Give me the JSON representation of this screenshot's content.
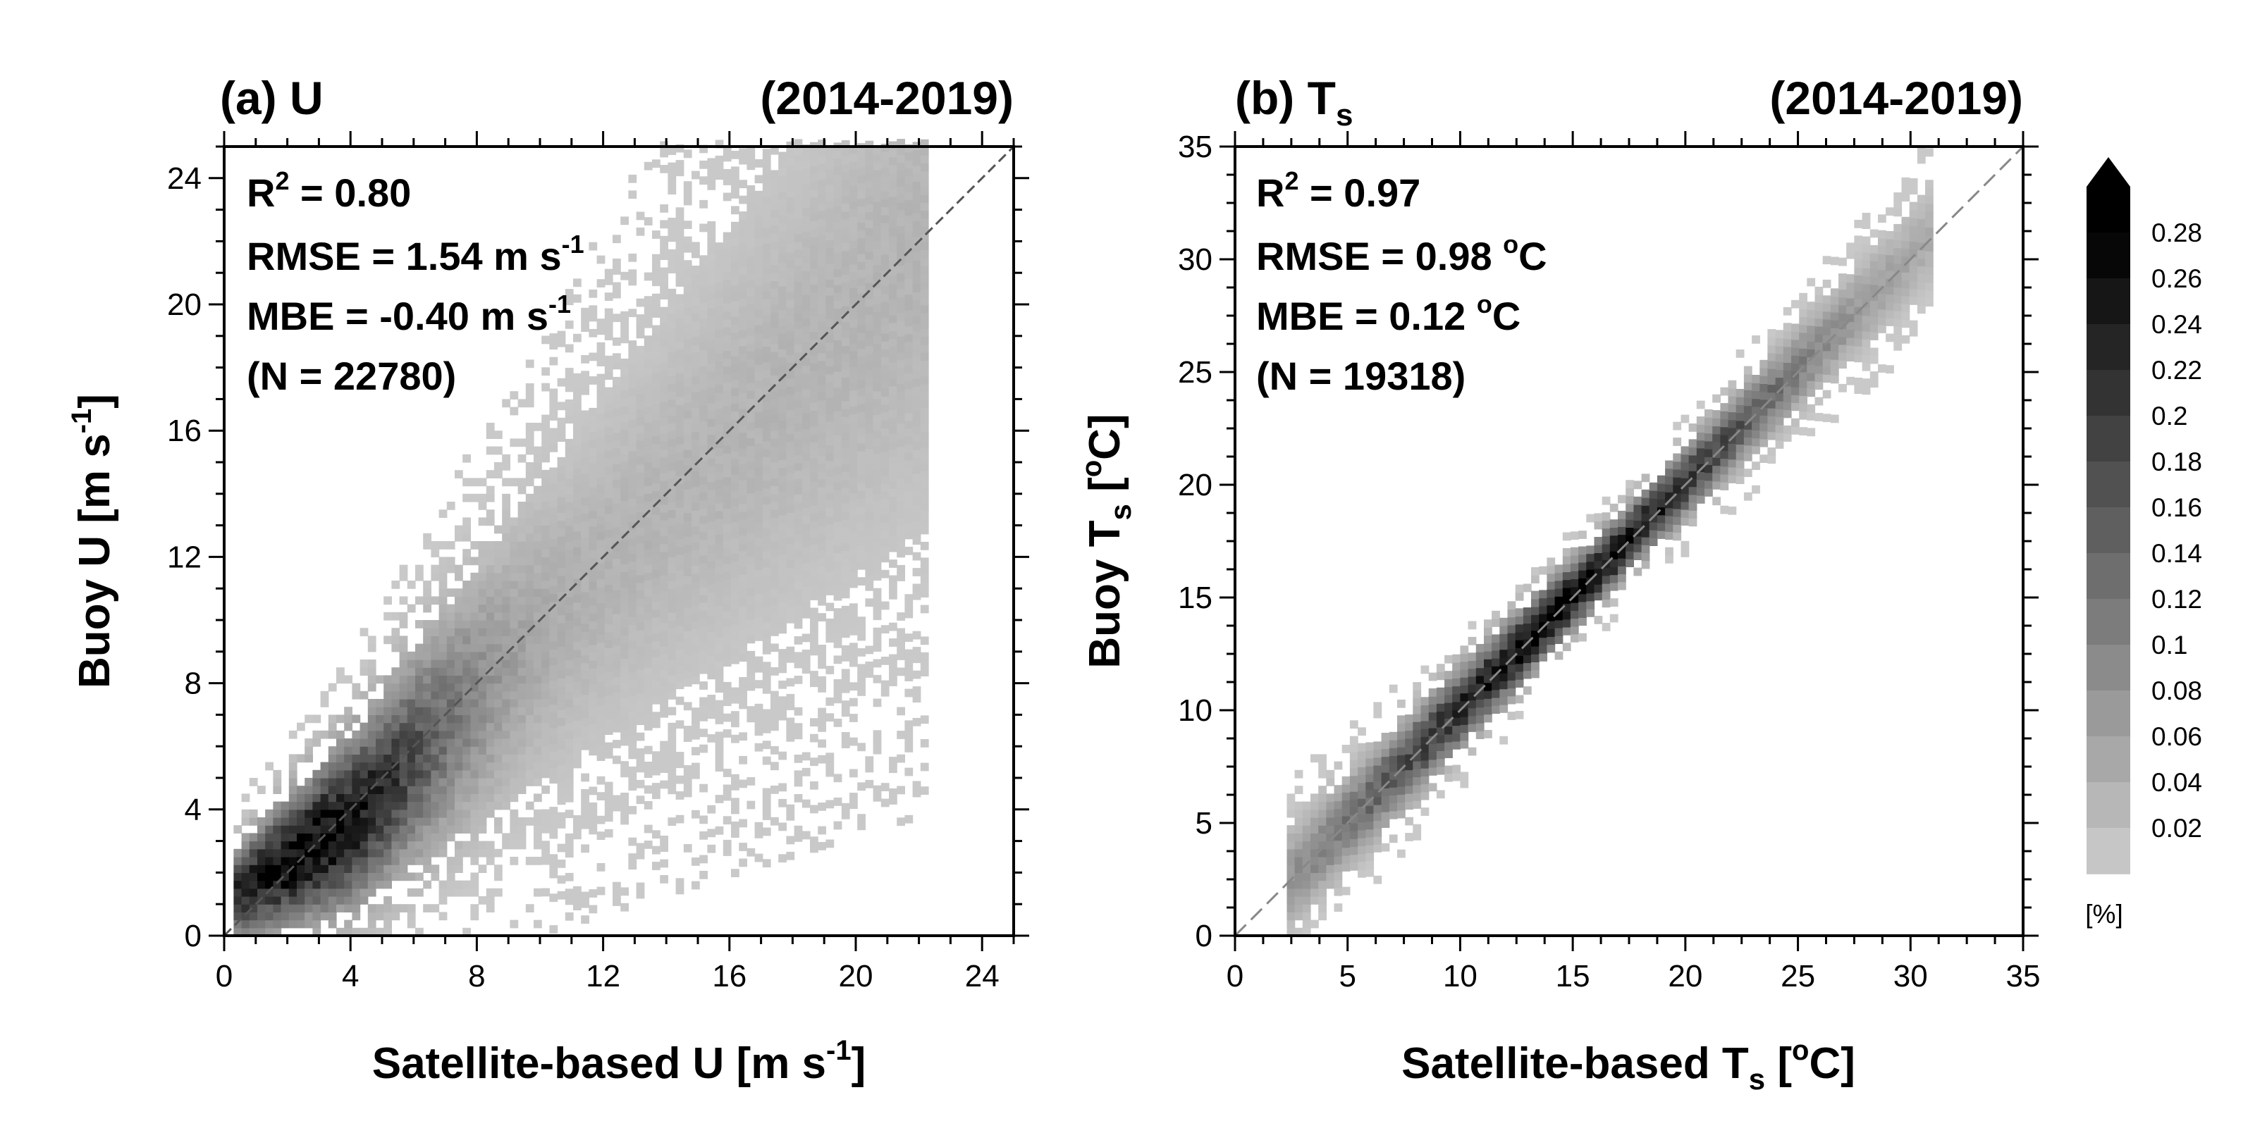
{
  "figure": {
    "colorbar": {
      "labels": [
        "0.28",
        "0.26",
        "0.24",
        "0.22",
        "0.2",
        "0.18",
        "0.16",
        "0.14",
        "0.12",
        "0.1",
        "0.08",
        "0.06",
        "0.04",
        "0.02"
      ],
      "unit": "[%]",
      "range": [
        0,
        0.3
      ]
    }
  },
  "chart_data": [
    {
      "type": "heatmap",
      "panel": "a",
      "title": "(a) U",
      "period": "(2014-2019)",
      "xlabel": "Satellite-based U [m s",
      "xlabel_sup": "-1",
      "xlabel_end": "]",
      "ylabel": "Buoy U [m s",
      "ylabel_sup": "-1",
      "ylabel_end": "]",
      "xlim": [
        0,
        25
      ],
      "ylim": [
        0,
        25
      ],
      "xticks": [
        "0",
        "4",
        "8",
        "12",
        "16",
        "20",
        "24"
      ],
      "yticks": [
        "0",
        "4",
        "8",
        "12",
        "16",
        "20",
        "24"
      ],
      "one_to_one_line": true,
      "stats": {
        "r2_prefix": "R",
        "r2_sup": "2",
        "r2_value": " = 0.80",
        "rmse_text": "RMSE = 1.54 m s",
        "rmse_sup": "-1",
        "mbe_text": "MBE = -0.40 m s",
        "mbe_sup": "-1",
        "n_text": "(N = 22780)"
      },
      "density_model": {
        "peak_x": 2.5,
        "peak_y": 2.7,
        "peak_value": 0.28,
        "bias": -0.4,
        "spread": 1.54,
        "max_x": 22.3,
        "cell_size": 0.25
      }
    },
    {
      "type": "heatmap",
      "panel": "b",
      "title": "(b) T",
      "title_sub": "s",
      "period": "(2014-2019)",
      "xlabel": "Satellite-based T",
      "xlabel_sub": "s",
      "xlabel_rest": " [",
      "xlabel_sup": "o",
      "xlabel_end": "C]",
      "ylabel": "Buoy T",
      "ylabel_sub": "s",
      "ylabel_rest": " [",
      "ylabel_sup": "o",
      "ylabel_end": "C]",
      "xlim": [
        0,
        35
      ],
      "ylim": [
        0,
        35
      ],
      "xticks": [
        "0",
        "5",
        "10",
        "15",
        "20",
        "25",
        "30",
        "35"
      ],
      "yticks": [
        "0",
        "5",
        "10",
        "15",
        "20",
        "25",
        "30",
        "35"
      ],
      "one_to_one_line": true,
      "stats": {
        "r2_prefix": "R",
        "r2_sup": "2",
        "r2_value": " = 0.97",
        "rmse_text": "RMSE = 0.98 ",
        "rmse_sup": "o",
        "rmse_end": "C",
        "mbe_text": "MBE = 0.12 ",
        "mbe_sup": "o",
        "mbe_end": "C",
        "n_text": "(N = 19318)"
      },
      "density_model": {
        "peak_x": 14.5,
        "peak_y": 14.6,
        "peak_value": 0.28,
        "bias": 0.12,
        "spread": 0.98,
        "min_x": 2.3,
        "max_x": 30.7,
        "cell_size": 0.35
      }
    }
  ]
}
